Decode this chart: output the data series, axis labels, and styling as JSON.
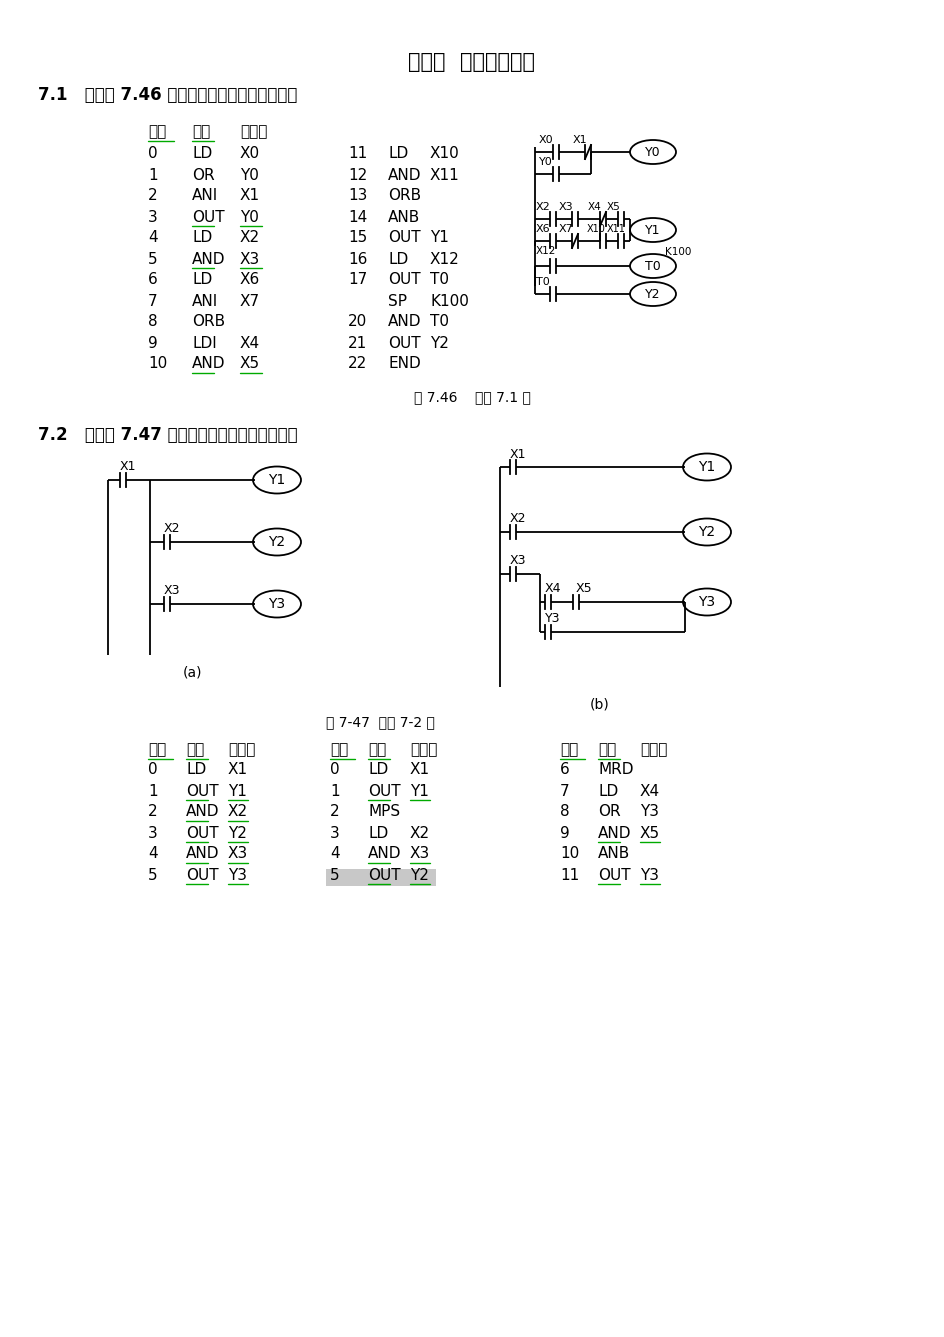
{
  "title": "第七章  基本逻辑指令",
  "section1_title": "7.1   写出图 7.46 所示梯形图对应的指令程序。",
  "section2_title": "7.2   写出图 7.47 所示梯形图对应的指令程序。",
  "fig1_caption": "图 7.46    习题 7.1 图",
  "fig2_caption": "图 7-47  习题 7-2 图",
  "hdr": [
    "步序",
    "指令",
    "器件号"
  ],
  "table1_left": [
    [
      "0",
      "LD",
      "X0"
    ],
    [
      "1",
      "OR",
      "Y0"
    ],
    [
      "2",
      "ANI",
      "X1"
    ],
    [
      "3",
      "OUT",
      "Y0"
    ],
    [
      "4",
      "LD",
      "X2"
    ],
    [
      "5",
      "AND",
      "X3"
    ],
    [
      "6",
      "LD",
      "X6"
    ],
    [
      "7",
      "ANI",
      "X7"
    ],
    [
      "8",
      "ORB",
      ""
    ],
    [
      "9",
      "LDI",
      "X4"
    ],
    [
      "10",
      "AND",
      "X5"
    ]
  ],
  "table1_right": [
    [
      "11",
      "LD",
      "X10"
    ],
    [
      "12",
      "AND",
      "X11"
    ],
    [
      "13",
      "ORB",
      ""
    ],
    [
      "14",
      "ANB",
      ""
    ],
    [
      "15",
      "OUT",
      "Y1"
    ],
    [
      "16",
      "LD",
      "X12"
    ],
    [
      "17",
      "OUT",
      "T0"
    ],
    [
      "",
      "SP",
      "K100"
    ],
    [
      "20",
      "AND",
      "T0"
    ],
    [
      "21",
      "OUT",
      "Y2"
    ],
    [
      "22",
      "END",
      ""
    ]
  ],
  "table2a": [
    [
      "0",
      "LD",
      "X1"
    ],
    [
      "1",
      "OUT",
      "Y1"
    ],
    [
      "2",
      "AND",
      "X2"
    ],
    [
      "3",
      "OUT",
      "Y2"
    ],
    [
      "4",
      "AND",
      "X3"
    ],
    [
      "5",
      "OUT",
      "Y3"
    ]
  ],
  "table2b": [
    [
      "0",
      "LD",
      "X1"
    ],
    [
      "1",
      "OUT",
      "Y1"
    ],
    [
      "2",
      "MPS",
      ""
    ],
    [
      "3",
      "LD",
      "X2"
    ],
    [
      "4",
      "AND",
      "X3"
    ],
    [
      "5",
      "OUT",
      "Y2"
    ]
  ],
  "table2c": [
    [
      "6",
      "MRD",
      ""
    ],
    [
      "7",
      "LD",
      "X4"
    ],
    [
      "8",
      "OR",
      "Y3"
    ],
    [
      "9",
      "AND",
      "X5"
    ],
    [
      "10",
      "ANB",
      ""
    ],
    [
      "11",
      "OUT",
      "Y3"
    ]
  ],
  "green": "#00aa00",
  "black": "#000000",
  "bg": "#ffffff",
  "gray_highlight": "#c8c8c8"
}
